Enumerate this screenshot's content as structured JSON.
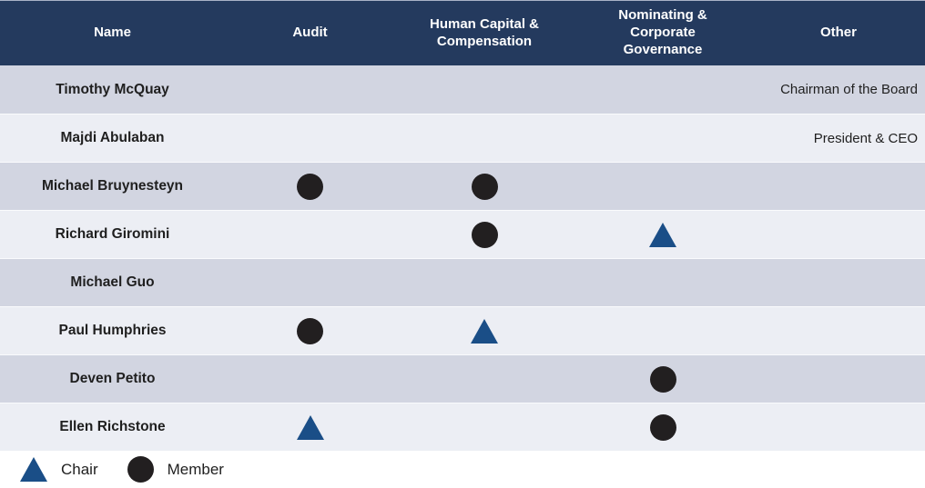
{
  "colors": {
    "header_bg": "#243a5e",
    "row_dark": "#d2d5e1",
    "row_light": "#eceef4",
    "chair_blue": "#1a4e87",
    "member_black": "#221f20"
  },
  "icons": {
    "chair-icon": "blue triangle",
    "member-icon": "black circle"
  },
  "table": {
    "columns": [
      "Name",
      "Audit",
      "Human Capital & Compensation",
      "Nominating & Corporate Governance",
      "Other"
    ],
    "rows": [
      {
        "name": "Timothy McQuay",
        "audit": "",
        "hcc": "",
        "ncg": "",
        "other": "Chairman of the Board"
      },
      {
        "name": "Majdi Abulaban",
        "audit": "",
        "hcc": "",
        "ncg": "",
        "other": "President & CEO"
      },
      {
        "name": "Michael Bruynesteyn",
        "audit": "member",
        "hcc": "member",
        "ncg": "",
        "other": ""
      },
      {
        "name": "Richard Giromini",
        "audit": "",
        "hcc": "member",
        "ncg": "chair",
        "other": ""
      },
      {
        "name": "Michael Guo",
        "audit": "",
        "hcc": "",
        "ncg": "",
        "other": ""
      },
      {
        "name": "Paul Humphries",
        "audit": "member",
        "hcc": "chair",
        "ncg": "",
        "other": ""
      },
      {
        "name": "Deven Petito",
        "audit": "",
        "hcc": "",
        "ncg": "member",
        "other": ""
      },
      {
        "name": "Ellen Richstone",
        "audit": "chair",
        "hcc": "",
        "ncg": "member",
        "other": ""
      }
    ]
  },
  "legend": {
    "chair_label": "Chair",
    "member_label": "Member"
  }
}
